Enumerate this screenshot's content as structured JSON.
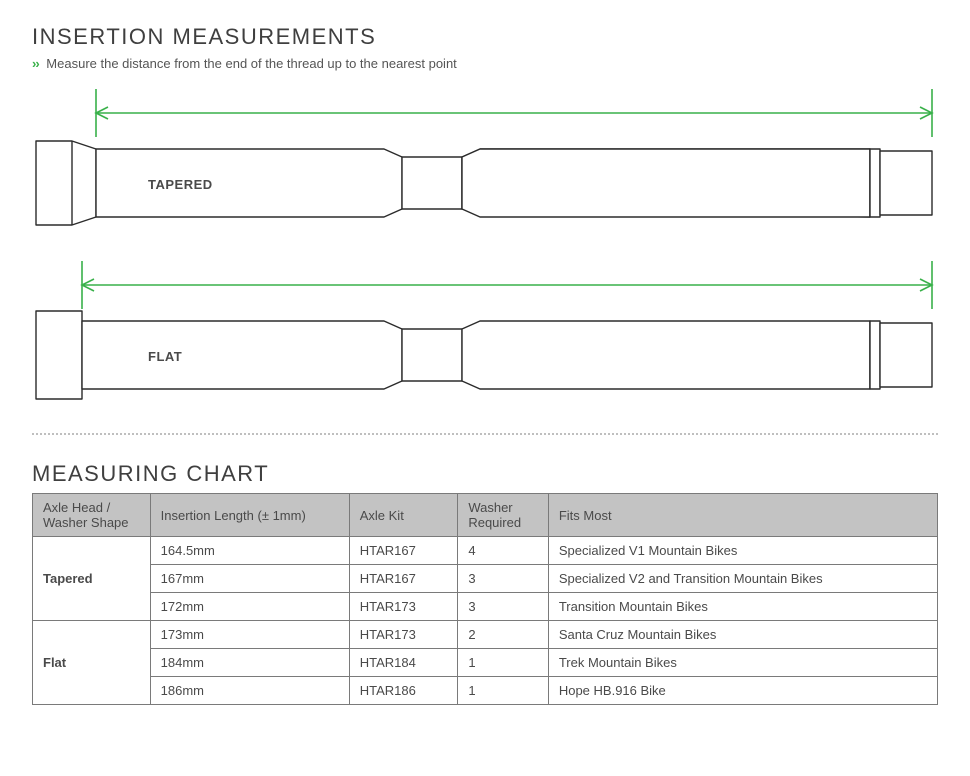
{
  "section1_title": "INSERTION MEASUREMENTS",
  "section1_sub": "Measure the distance from the end of the thread up to the nearest point",
  "diagrams": {
    "tapered_label": "TAPERED",
    "flat_label": "FLAT",
    "stroke": "#2b2b2b",
    "stroke_width": 1.4,
    "arrow_color": "#39b14a",
    "arrow_width": 1.6
  },
  "section2_title": "MEASURING CHART",
  "table": {
    "header_bg": "#c3c3c3",
    "columns": [
      "Axle Head / Washer Shape",
      "Insertion Length (± 1mm)",
      "Axle Kit",
      "Washer Required",
      "Fits Most"
    ],
    "groups": [
      {
        "shape": "Tapered",
        "rows": [
          {
            "len": "164.5mm",
            "kit": "HTAR167",
            "washer": "4",
            "fits": "Specialized V1 Mountain Bikes"
          },
          {
            "len": "167mm",
            "kit": "HTAR167",
            "washer": "3",
            "fits": "Specialized V2 and Transition Mountain Bikes"
          },
          {
            "len": "172mm",
            "kit": "HTAR173",
            "washer": "3",
            "fits": "Transition Mountain Bikes"
          }
        ]
      },
      {
        "shape": "Flat",
        "rows": [
          {
            "len": "173mm",
            "kit": "HTAR173",
            "washer": "2",
            "fits": "Santa Cruz Mountain Bikes"
          },
          {
            "len": "184mm",
            "kit": "HTAR184",
            "washer": "1",
            "fits": "Trek Mountain Bikes"
          },
          {
            "len": "186mm",
            "kit": "HTAR186",
            "washer": "1",
            "fits": "Hope HB.916 Bike"
          }
        ]
      }
    ]
  }
}
